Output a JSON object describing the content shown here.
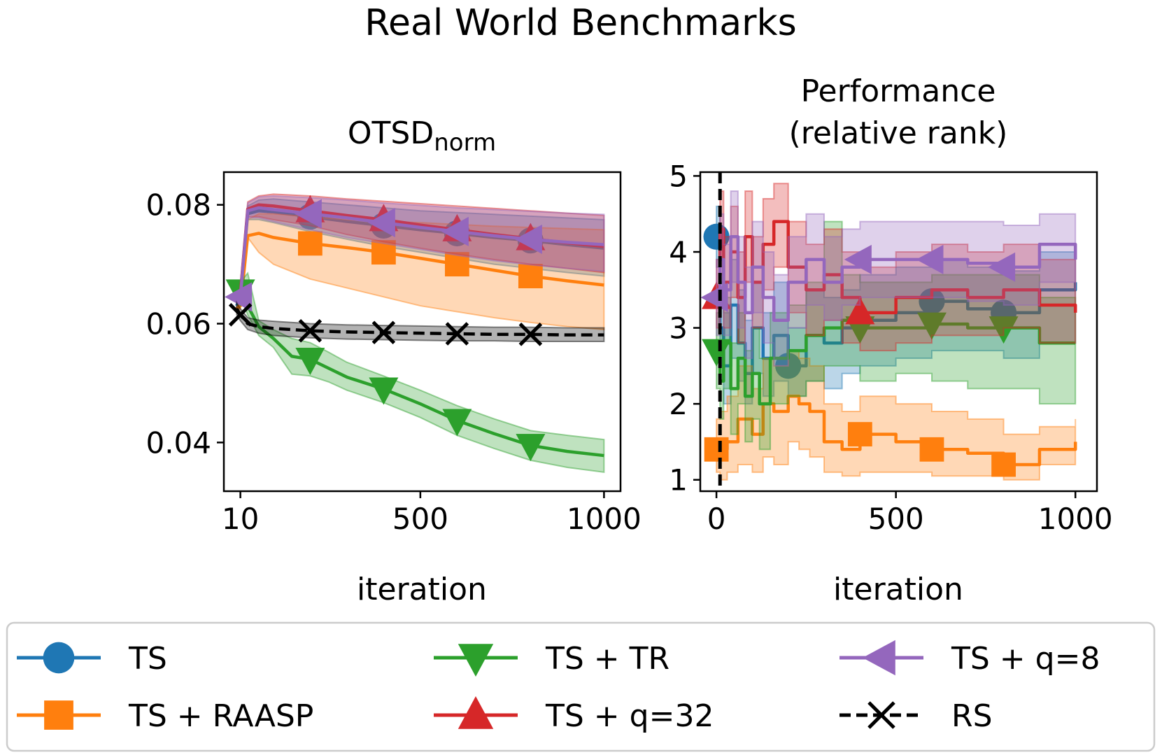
{
  "figure_title": "Real World Benchmarks",
  "colors": {
    "TS": "#1f77b4",
    "TS + RAASP": "#ff7f0e",
    "TS + TR": "#2ca02c",
    "TS + q=32": "#d62728",
    "TS + q=8": "#9467bd",
    "RS": "#000000"
  },
  "chart_data": [
    {
      "type": "line",
      "title": "OTSD",
      "title_subscript": "norm",
      "xlabel": "iteration",
      "ylabel": "",
      "xlim": [
        -35,
        1045
      ],
      "ylim": [
        0.0318,
        0.0855
      ],
      "xticks": [
        10,
        500,
        1000
      ],
      "xtick_labels": [
        "10",
        "500",
        "1000"
      ],
      "yticks": [
        0.04,
        0.06,
        0.08
      ],
      "ytick_labels": [
        "0.04",
        "0.06",
        "0.08"
      ],
      "series": [
        {
          "name": "TS",
          "marker": "circle",
          "x": [
            0,
            10,
            30,
            60,
            100,
            200,
            300,
            400,
            500,
            600,
            700,
            800,
            900,
            1000
          ],
          "y": [
            0.063,
            0.065,
            0.0785,
            0.079,
            0.0788,
            0.078,
            0.0772,
            0.0765,
            0.0758,
            0.0752,
            0.0745,
            0.074,
            0.0733,
            0.0727
          ],
          "lower": [
            0.0625,
            0.064,
            0.0775,
            0.0775,
            0.077,
            0.0755,
            0.0742,
            0.073,
            0.072,
            0.071,
            0.07,
            0.0693,
            0.0686,
            0.068
          ],
          "upper": [
            0.0635,
            0.066,
            0.0798,
            0.0808,
            0.081,
            0.0805,
            0.08,
            0.0795,
            0.079,
            0.0787,
            0.0784,
            0.0781,
            0.0778,
            0.0775
          ],
          "marker_x": [
            200,
            400,
            600,
            800
          ]
        },
        {
          "name": "TS + RAASP",
          "marker": "square",
          "x": [
            0,
            10,
            30,
            60,
            100,
            200,
            300,
            400,
            500,
            600,
            700,
            800,
            900,
            1000
          ],
          "y": [
            0.0625,
            0.063,
            0.0748,
            0.0752,
            0.0745,
            0.0735,
            0.0728,
            0.072,
            0.071,
            0.07,
            0.069,
            0.068,
            0.0672,
            0.0665
          ],
          "lower": [
            0.062,
            0.0625,
            0.0745,
            0.072,
            0.07,
            0.0675,
            0.066,
            0.0645,
            0.063,
            0.062,
            0.061,
            0.0602,
            0.0595,
            0.059
          ],
          "upper": [
            0.063,
            0.0635,
            0.0775,
            0.0785,
            0.0785,
            0.078,
            0.0775,
            0.0772,
            0.077,
            0.0767,
            0.0764,
            0.0762,
            0.076,
            0.0758
          ],
          "marker_x": [
            200,
            400,
            600,
            800
          ]
        },
        {
          "name": "TS + TR",
          "marker": "triangle-down",
          "x": [
            0,
            10,
            30,
            60,
            100,
            150,
            200,
            250,
            300,
            400,
            500,
            600,
            700,
            800,
            900,
            1000
          ],
          "y": [
            0.065,
            0.0655,
            0.063,
            0.0595,
            0.0575,
            0.0545,
            0.054,
            0.0525,
            0.051,
            0.049,
            0.0465,
            0.0437,
            0.0415,
            0.0395,
            0.0385,
            0.0378
          ],
          "lower": [
            0.0645,
            0.0645,
            0.0615,
            0.058,
            0.056,
            0.0515,
            0.0512,
            0.0502,
            0.0488,
            0.0467,
            0.0442,
            0.0412,
            0.039,
            0.037,
            0.0358,
            0.035
          ],
          "upper": [
            0.0655,
            0.067,
            0.0685,
            0.0605,
            0.059,
            0.0575,
            0.0568,
            0.0552,
            0.0535,
            0.0512,
            0.0488,
            0.0462,
            0.044,
            0.042,
            0.0412,
            0.0405
          ],
          "marker_x": [
            10,
            200,
            400,
            600,
            800
          ]
        },
        {
          "name": "TS + q=32",
          "marker": "triangle-up",
          "x": [
            0,
            10,
            30,
            60,
            100,
            200,
            300,
            400,
            500,
            600,
            700,
            800,
            900,
            1000
          ],
          "y": [
            0.064,
            0.065,
            0.0793,
            0.08,
            0.0798,
            0.079,
            0.0782,
            0.0775,
            0.0766,
            0.0758,
            0.075,
            0.0743,
            0.0736,
            0.073
          ],
          "lower": [
            0.0635,
            0.064,
            0.078,
            0.078,
            0.0775,
            0.0765,
            0.075,
            0.0738,
            0.0727,
            0.0717,
            0.0708,
            0.07,
            0.0693,
            0.0686
          ],
          "upper": [
            0.0645,
            0.066,
            0.0805,
            0.0815,
            0.0818,
            0.0815,
            0.081,
            0.0806,
            0.0802,
            0.0798,
            0.0794,
            0.079,
            0.0786,
            0.0782
          ],
          "marker_x": [
            200,
            400,
            600,
            800
          ]
        },
        {
          "name": "TS + q=8",
          "marker": "triangle-left",
          "x": [
            0,
            10,
            30,
            60,
            100,
            200,
            300,
            400,
            500,
            600,
            700,
            800,
            900,
            1000
          ],
          "y": [
            0.064,
            0.0645,
            0.079,
            0.0795,
            0.0792,
            0.0785,
            0.0778,
            0.077,
            0.0762,
            0.0755,
            0.0748,
            0.0742,
            0.0737,
            0.0733
          ],
          "lower": [
            0.0635,
            0.0635,
            0.0778,
            0.0778,
            0.0772,
            0.0758,
            0.0745,
            0.0735,
            0.0725,
            0.0715,
            0.0706,
            0.0699,
            0.0693,
            0.0688
          ],
          "upper": [
            0.0645,
            0.0655,
            0.0803,
            0.0813,
            0.0815,
            0.0812,
            0.0808,
            0.0803,
            0.0799,
            0.0795,
            0.0792,
            0.0789,
            0.0786,
            0.0784
          ],
          "marker_x": [
            10,
            200,
            400,
            600,
            800
          ]
        },
        {
          "name": "RS",
          "marker": "x",
          "dashed": true,
          "x": [
            0,
            10,
            30,
            60,
            100,
            200,
            300,
            400,
            500,
            600,
            700,
            800,
            900,
            1000
          ],
          "y": [
            0.0625,
            0.0615,
            0.06,
            0.0595,
            0.0592,
            0.0588,
            0.0586,
            0.0585,
            0.0584,
            0.0583,
            0.0582,
            0.0582,
            0.0581,
            0.0581
          ],
          "lower": [
            0.0615,
            0.0605,
            0.059,
            0.0584,
            0.058,
            0.0576,
            0.0574,
            0.0573,
            0.0572,
            0.0571,
            0.0571,
            0.057,
            0.057,
            0.057
          ],
          "upper": [
            0.0635,
            0.0625,
            0.061,
            0.0606,
            0.0604,
            0.06,
            0.0598,
            0.0597,
            0.0596,
            0.0595,
            0.0594,
            0.0594,
            0.0593,
            0.0593
          ],
          "marker_x": [
            10,
            200,
            400,
            600,
            800
          ]
        }
      ]
    },
    {
      "type": "line",
      "title": "Performance",
      "title_line2": "(relative rank)",
      "xlabel": "iteration",
      "ylabel": "",
      "xlim": [
        -45,
        1060
      ],
      "ylim": [
        0.85,
        5.05
      ],
      "xticks": [
        0,
        500,
        1000
      ],
      "xtick_labels": [
        "0",
        "500",
        "1000"
      ],
      "yticks": [
        1,
        2,
        3,
        4,
        5
      ],
      "ytick_labels": [
        "1",
        "2",
        "3",
        "4",
        "5"
      ],
      "vline_x": 10,
      "series": [
        {
          "name": "TS",
          "marker": "circle",
          "x": [
            0,
            10,
            20,
            40,
            60,
            80,
            100,
            130,
            160,
            200,
            250,
            300,
            350,
            400,
            500,
            600,
            700,
            800,
            900,
            1000
          ],
          "y": [
            4.2,
            3.0,
            2.5,
            3.3,
            2.8,
            2.4,
            3.0,
            2.6,
            2.9,
            2.5,
            2.9,
            2.8,
            3.0,
            3.1,
            3.2,
            3.35,
            3.25,
            3.2,
            3.5,
            3.6
          ],
          "lower": [
            3.8,
            2.5,
            2.0,
            2.6,
            2.3,
            2.0,
            2.4,
            2.1,
            2.3,
            2.1,
            2.3,
            2.2,
            2.4,
            2.5,
            2.6,
            2.7,
            2.7,
            2.6,
            2.8,
            3.0
          ],
          "upper": [
            4.6,
            3.6,
            3.2,
            3.9,
            3.5,
            3.1,
            3.6,
            3.2,
            3.6,
            3.0,
            3.5,
            3.4,
            3.5,
            3.7,
            3.8,
            3.9,
            3.8,
            3.75,
            4.0,
            4.1
          ],
          "marker_x": [
            0,
            200,
            600,
            800
          ]
        },
        {
          "name": "TS + RAASP",
          "marker": "square",
          "x": [
            0,
            10,
            30,
            60,
            100,
            130,
            160,
            200,
            230,
            260,
            300,
            350,
            400,
            500,
            600,
            700,
            800,
            900,
            1000
          ],
          "y": [
            1.4,
            1.4,
            1.5,
            1.8,
            1.6,
            2.0,
            1.9,
            2.1,
            2.0,
            1.9,
            1.5,
            1.4,
            1.6,
            1.5,
            1.4,
            1.35,
            1.2,
            1.4,
            1.5
          ],
          "lower": [
            1.1,
            1.0,
            1.1,
            1.2,
            1.1,
            1.3,
            1.2,
            1.5,
            1.4,
            1.3,
            1.1,
            1.05,
            1.1,
            1.1,
            1.05,
            1.05,
            1.0,
            1.2,
            1.2
          ],
          "upper": [
            1.8,
            1.9,
            2.1,
            2.5,
            2.2,
            2.6,
            2.5,
            2.7,
            2.6,
            2.5,
            2.0,
            1.9,
            2.1,
            2.0,
            1.9,
            1.8,
            1.6,
            1.7,
            1.8
          ],
          "marker_x": [
            0,
            400,
            600,
            800
          ]
        },
        {
          "name": "TS + TR",
          "marker": "triangle-down",
          "x": [
            0,
            10,
            20,
            40,
            60,
            80,
            100,
            120,
            150,
            200,
            250,
            300,
            350,
            400,
            500,
            600,
            700,
            800,
            900,
            1000
          ],
          "y": [
            2.7,
            2.3,
            2.8,
            2.2,
            2.6,
            2.1,
            2.4,
            2.0,
            2.6,
            2.7,
            2.9,
            3.0,
            3.1,
            3.0,
            3.0,
            3.05,
            3.0,
            3.0,
            2.8,
            2.8
          ],
          "lower": [
            2.2,
            1.8,
            2.2,
            1.6,
            2.0,
            1.5,
            1.8,
            1.4,
            2.0,
            2.1,
            2.3,
            2.5,
            2.5,
            2.3,
            2.4,
            2.3,
            2.2,
            2.2,
            2.0,
            2.0
          ],
          "upper": [
            3.2,
            2.9,
            3.4,
            2.8,
            3.2,
            2.7,
            3.0,
            2.6,
            3.2,
            3.3,
            3.6,
            4.4,
            3.7,
            3.6,
            3.6,
            3.7,
            3.7,
            3.7,
            3.4,
            3.4
          ],
          "marker_x": [
            0,
            400,
            600,
            800
          ]
        },
        {
          "name": "TS + q=32",
          "marker": "triangle-up",
          "x": [
            0,
            10,
            20,
            40,
            60,
            80,
            100,
            130,
            160,
            200,
            250,
            300,
            350,
            400,
            500,
            600,
            700,
            800,
            900,
            1000
          ],
          "y": [
            3.4,
            4.3,
            3.6,
            4.0,
            3.4,
            4.2,
            3.6,
            4.1,
            4.4,
            3.8,
            3.5,
            3.7,
            3.4,
            3.2,
            3.4,
            3.5,
            3.4,
            3.5,
            3.3,
            3.2
          ],
          "lower": [
            3.0,
            3.7,
            3.0,
            3.4,
            2.8,
            3.6,
            3.0,
            3.5,
            3.8,
            3.2,
            2.9,
            3.1,
            2.8,
            2.7,
            2.8,
            2.9,
            2.9,
            3.0,
            2.8,
            2.8
          ],
          "upper": [
            3.9,
            4.8,
            4.2,
            4.6,
            4.0,
            4.8,
            4.2,
            4.7,
            4.9,
            4.4,
            4.1,
            4.3,
            4.0,
            3.8,
            4.0,
            4.1,
            4.0,
            4.1,
            3.9,
            3.8
          ],
          "marker_x": [
            0,
            400
          ]
        },
        {
          "name": "TS + q=8",
          "marker": "triangle-left",
          "x": [
            0,
            10,
            20,
            40,
            60,
            80,
            100,
            130,
            160,
            200,
            250,
            300,
            350,
            400,
            500,
            600,
            700,
            800,
            900,
            1000
          ],
          "y": [
            3.4,
            3.9,
            3.5,
            4.2,
            3.6,
            3.2,
            3.8,
            3.4,
            3.1,
            3.6,
            3.9,
            3.6,
            3.8,
            3.9,
            3.9,
            3.9,
            3.85,
            3.8,
            4.1,
            3.9
          ],
          "lower": [
            2.9,
            3.3,
            2.9,
            3.6,
            3.0,
            2.6,
            3.2,
            2.8,
            2.5,
            3.0,
            3.3,
            3.1,
            3.3,
            3.4,
            3.4,
            3.4,
            3.35,
            3.3,
            3.6,
            3.5
          ],
          "upper": [
            3.9,
            4.5,
            4.1,
            4.8,
            4.2,
            3.8,
            4.4,
            4.0,
            3.7,
            4.2,
            4.5,
            4.2,
            4.3,
            4.4,
            4.4,
            4.4,
            4.4,
            4.35,
            4.5,
            4.4
          ],
          "marker_x": [
            0,
            400,
            600,
            800
          ]
        }
      ]
    }
  ],
  "legend": {
    "placement": "bottom",
    "columns": 3,
    "items": [
      {
        "label": "TS",
        "series": "TS",
        "marker": "circle"
      },
      {
        "label": "TS + TR",
        "series": "TS + TR",
        "marker": "triangle-down"
      },
      {
        "label": "TS + q=8",
        "series": "TS + q=8",
        "marker": "triangle-left"
      },
      {
        "label": "TS + RAASP",
        "series": "TS + RAASP",
        "marker": "square"
      },
      {
        "label": "TS + q=32",
        "series": "TS + q=32",
        "marker": "triangle-up"
      },
      {
        "label": "RS",
        "series": "RS",
        "marker": "x",
        "dashed": true
      }
    ]
  }
}
